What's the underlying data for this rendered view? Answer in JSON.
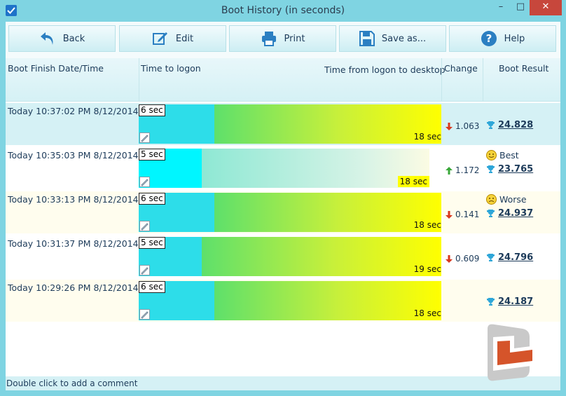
{
  "window": {
    "title": "Boot History (in seconds)",
    "minimize_glyph": "–",
    "maximize_glyph": "□",
    "close_glyph": "✕"
  },
  "toolbar": {
    "back_label": "Back",
    "edit_label": "Edit",
    "print_label": "Print",
    "save_label": "Save as...",
    "help_label": "Help"
  },
  "columns": {
    "date": "Boot Finish Date/Time",
    "logon": "Time to logon",
    "desktop": "Time from logon to desktop",
    "change": "Change",
    "result": "Boot Result"
  },
  "rows": [
    {
      "date": "Today  10:37:02 PM 8/12/2014",
      "logon_label": "6 sec",
      "logon_sec": 6,
      "desktop_label": "18 sec",
      "desktop_sec": 18,
      "change": "1.063",
      "change_dir": "down",
      "note": "",
      "result": "24.828",
      "bg": "#d5f1f5"
    },
    {
      "date": "Today  10:35:03 PM 8/12/2014",
      "logon_label": "5 sec",
      "logon_sec": 5,
      "desktop_label": "18 sec",
      "desktop_sec": 18,
      "change": "1.172",
      "change_dir": "up",
      "note": "Best",
      "result": "23.765",
      "bg": "#ffffff"
    },
    {
      "date": "Today  10:33:13 PM 8/12/2014",
      "logon_label": "6 sec",
      "logon_sec": 6,
      "desktop_label": "18 sec",
      "desktop_sec": 18,
      "change": "0.141",
      "change_dir": "down",
      "note": "Worse",
      "result": "24.937",
      "bg": "#fffdee"
    },
    {
      "date": "Today  10:31:37 PM 8/12/2014",
      "logon_label": "5 sec",
      "logon_sec": 5,
      "desktop_label": "19 sec",
      "desktop_sec": 19,
      "change": "0.609",
      "change_dir": "down",
      "note": "",
      "result": "24.796",
      "bg": "#ffffff"
    },
    {
      "date": "Today  10:29:26 PM 8/12/2014",
      "logon_label": "6 sec",
      "logon_sec": 6,
      "desktop_label": "18 sec",
      "desktop_sec": 18,
      "change": "",
      "change_dir": "",
      "note": "",
      "result": "24.187",
      "bg": "#fffdee"
    }
  ],
  "footer": {
    "hint": "Double click to add a comment"
  },
  "colors": {
    "accent": "#7fd4e2",
    "down_arrow": "#d9381e",
    "up_arrow": "#3aa83a",
    "trophy": "#2ea6d8"
  }
}
